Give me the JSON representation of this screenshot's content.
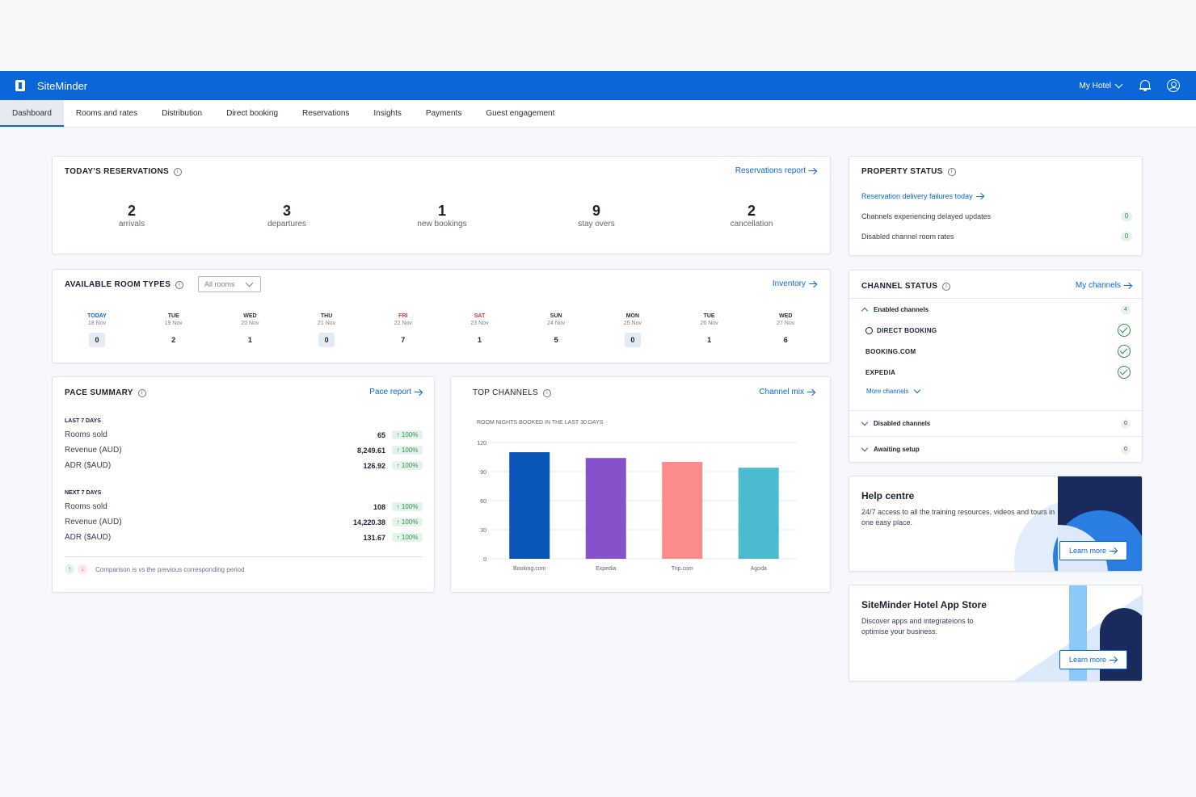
{
  "app": {
    "brand": "SiteMinder",
    "hotel": "My Hotel"
  },
  "nav": [
    "Dashboard",
    "Rooms and rates",
    "Distribution",
    "Direct booking",
    "Reservations",
    "Insights",
    "Payments",
    "Guest engagement"
  ],
  "reservations": {
    "title": "TODAY'S RESERVATIONS",
    "link": "Reservations report",
    "stats": [
      {
        "n": "2",
        "l": "arrivals"
      },
      {
        "n": "3",
        "l": "departures"
      },
      {
        "n": "1",
        "l": "new bookings"
      },
      {
        "n": "9",
        "l": "stay overs"
      },
      {
        "n": "2",
        "l": "cancellation"
      }
    ]
  },
  "property": {
    "title": "PROPERTY STATUS",
    "link": "Reservation delivery failures today",
    "rows": [
      {
        "label": "Channels experiencing delayed updates",
        "count": "0"
      },
      {
        "label": "Disabled channel room rates",
        "count": "0"
      }
    ]
  },
  "rooms": {
    "title": "AVAILABLE ROOM TYPES",
    "filter": "All rooms",
    "link": "Inventory",
    "days": [
      {
        "name": "TODAY",
        "date": "18 Nov",
        "value": "0",
        "color": "#0a66d9"
      },
      {
        "name": "TUE",
        "date": "19 Nov",
        "value": "2",
        "color": "#2a2f3a"
      },
      {
        "name": "WED",
        "date": "20 Nov",
        "value": "1",
        "color": "#2a2f3a"
      },
      {
        "name": "THU",
        "date": "21 Nov",
        "value": "0",
        "color": "#2a2f3a"
      },
      {
        "name": "FRI",
        "date": "22 Nov",
        "value": "7",
        "color": "#d93b3b"
      },
      {
        "name": "SAT",
        "date": "23 Nov",
        "value": "1",
        "color": "#d93b3b"
      },
      {
        "name": "SUN",
        "date": "24 Nov",
        "value": "5",
        "color": "#2a2f3a"
      },
      {
        "name": "MON",
        "date": "25 Nov",
        "value": "0",
        "color": "#2a2f3a"
      },
      {
        "name": "TUE",
        "date": "26 Nov",
        "value": "1",
        "color": "#2a2f3a"
      },
      {
        "name": "WED",
        "date": "27 Nov",
        "value": "6",
        "color": "#2a2f3a"
      }
    ]
  },
  "channel_status": {
    "title": "CHANNEL STATUS",
    "link": "My channels",
    "enabled_label": "Enabled channels",
    "enabled_count": "4",
    "channels": [
      "DIRECT BOOKING",
      "BOOKING.COM",
      "EXPEDIA"
    ],
    "more": "More channels",
    "disabled_label": "Disabled channels",
    "disabled_count": "0",
    "awaiting_label": "Awaiting setup",
    "awaiting_count": "0"
  },
  "pace": {
    "title": "PACE SUMMARY",
    "link": "Pace report",
    "last_label": "LAST 7 DAYS",
    "last": [
      {
        "label": "Rooms sold",
        "value": "65",
        "pct": "↑ 100%"
      },
      {
        "label": "Revenue (AUD)",
        "value": "8,249.61",
        "pct": "↑ 100%"
      },
      {
        "label": "ADR ($AUD)",
        "value": "126.92",
        "pct": "↑ 100%"
      }
    ],
    "next_label": "NEXT 7 DAYS",
    "next": [
      {
        "label": "Rooms sold",
        "value": "108",
        "pct": "↑ 100%"
      },
      {
        "label": "Revenue (AUD)",
        "value": "14,220.38",
        "pct": "↑ 100%"
      },
      {
        "label": "ADR ($AUD)",
        "value": "131.67",
        "pct": "↑ 100%"
      }
    ],
    "footnote": "Comparison is vs the previous corresponding period"
  },
  "top_channels": {
    "title": "TOP CHANNELS",
    "link": "Channel mix"
  },
  "chart_data": {
    "type": "bar",
    "title": "ROOM NIGHTS BOOKED IN THE LAST 30 DAYS",
    "categories": [
      "Booking.com",
      "Expedia",
      "Trip.com",
      "Agoda"
    ],
    "values": [
      110,
      104,
      100,
      94
    ],
    "colors": [
      "#0a56b8",
      "#8652cc",
      "#fc8c8c",
      "#4bbccf"
    ],
    "ylim": [
      0,
      120
    ],
    "yticks": [
      "0",
      "30",
      "60",
      "90",
      "120"
    ],
    "grid": true
  },
  "help": {
    "title": "Help centre",
    "text": "24/7 access to all the training resources, videos and tours in one easy place.",
    "button": "Learn more"
  },
  "appstore": {
    "title": "SiteMinder Hotel App Store",
    "text": "Discover apps and integrateions to optimise your business.",
    "button": "Learn more"
  }
}
